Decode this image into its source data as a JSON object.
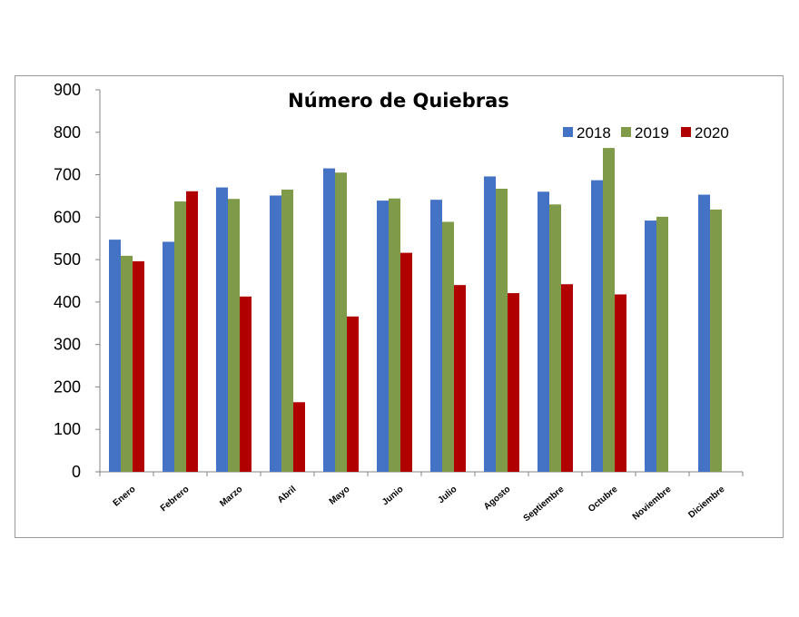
{
  "chart_data": {
    "type": "bar",
    "title": "Número de Quiebras",
    "categories": [
      "Enero",
      "Febrero",
      "Marzo",
      "Abril",
      "Mayo",
      "Junio",
      "Julio",
      "Agosto",
      "Septiembre",
      "Octubre",
      "Noviembre",
      "Diciembre"
    ],
    "series": [
      {
        "name": "2018",
        "color": "#4472c4",
        "values": [
          547,
          542,
          670,
          651,
          715,
          639,
          641,
          696,
          660,
          687,
          592,
          653
        ]
      },
      {
        "name": "2019",
        "color": "#7f9a48",
        "values": [
          509,
          637,
          643,
          665,
          705,
          644,
          589,
          667,
          630,
          763,
          601,
          618
        ]
      },
      {
        "name": "2020",
        "color": "#b00000",
        "values": [
          496,
          661,
          413,
          164,
          366,
          516,
          440,
          421,
          442,
          418,
          null,
          null
        ]
      }
    ],
    "yticks": [
      0,
      100,
      200,
      300,
      400,
      500,
      600,
      700,
      800,
      900
    ],
    "ylim": [
      0,
      900
    ],
    "xlabel": "",
    "ylabel": "",
    "grid": false,
    "legend_position": "top-right"
  }
}
